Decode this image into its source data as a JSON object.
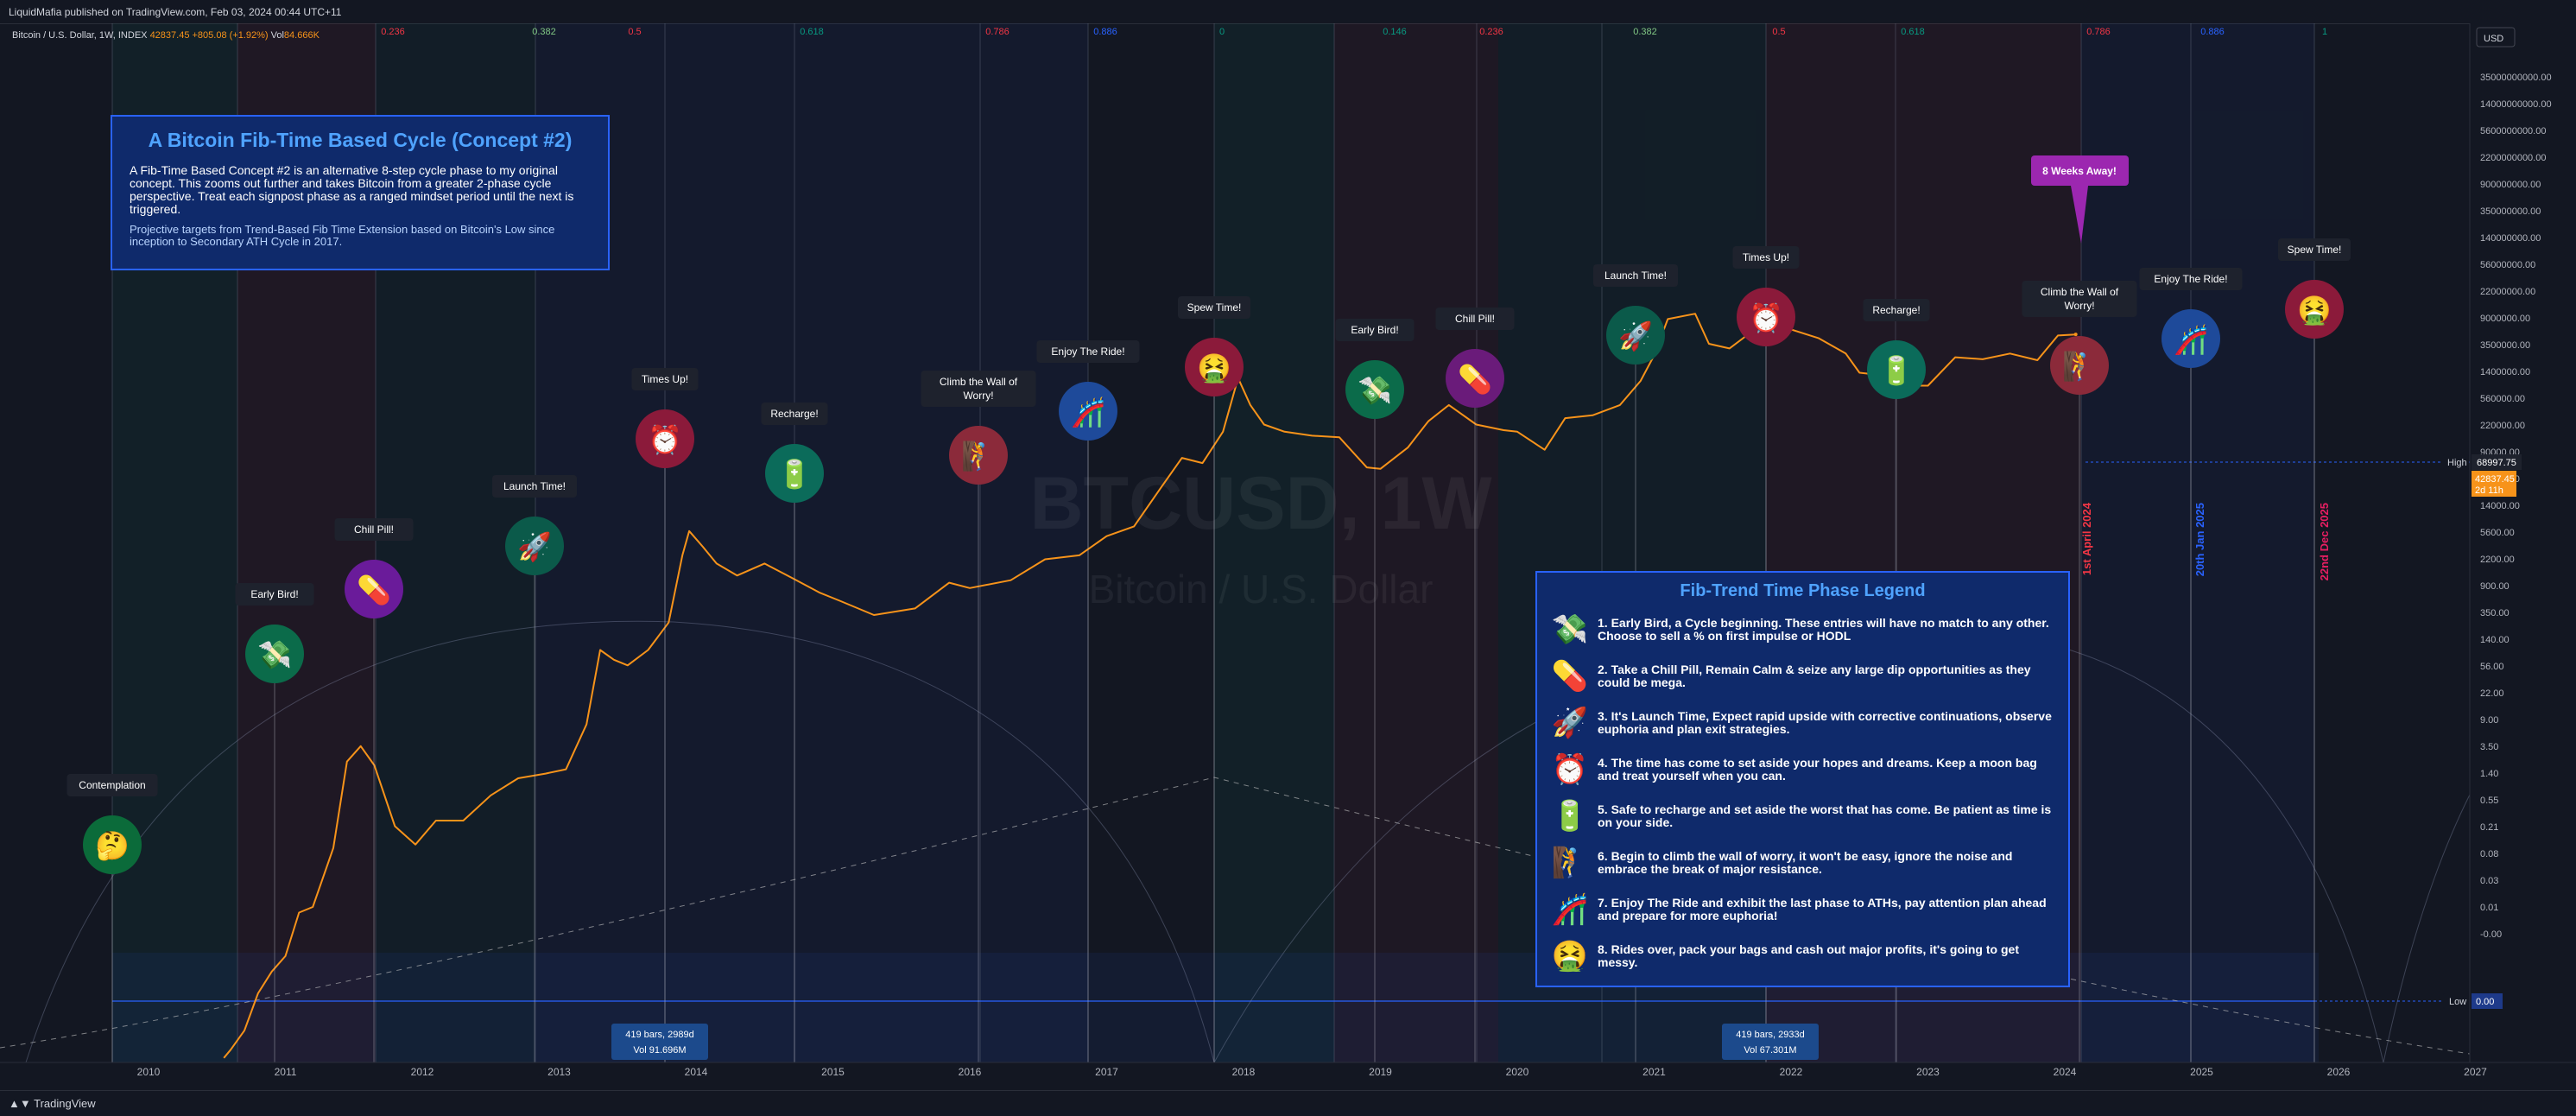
{
  "header": {
    "published_by": "LiquidMafia published on TradingView.com, Feb 03, 2024 00:44 UTC+11",
    "symbol_name": "Bitcoin / U.S. Dollar, 1W, INDEX",
    "ohlc_text": "42837.45 +805.08 (+1.92%)",
    "vol_label": "Vol",
    "vol_value": "84.666K"
  },
  "footer": {
    "brand": "TradingView"
  },
  "watermark": {
    "ticker": "BTCUSD, 1W",
    "name": "Bitcoin / U.S. Dollar"
  },
  "info_box": {
    "title": "A Bitcoin Fib-Time Based Cycle (Concept #2)",
    "body": "A Fib-Time Based Concept #2 is an alternative 8-step cycle phase to my original concept. This zooms out further and takes Bitcoin from a greater 2-phase cycle perspective. Treat each signpost phase as a ranged mindset period until the next is triggered.",
    "sub": "Projective targets from Trend-Based Fib Time Extension based on Bitcoin's Low since inception to Secondary ATH Cycle in 2017."
  },
  "legend_box": {
    "title": "Fib-Trend Time Phase Legend",
    "items": [
      {
        "icon": "money-with-wings-icon",
        "glyph": "💸",
        "text": "1. Early Bird, a Cycle beginning. These entries will have no match to any other. Choose to sell a % on first impulse or HODL"
      },
      {
        "icon": "pill-icon",
        "glyph": "💊",
        "text": "2. Take a Chill Pill, Remain Calm & seize any large dip opportunities as they could be mega."
      },
      {
        "icon": "rocket-icon",
        "glyph": "🚀",
        "text": "3. It's Launch Time, Expect rapid upside with corrective continuations, observe euphoria and plan exit strategies."
      },
      {
        "icon": "alarm-clock-icon",
        "glyph": "⏰",
        "text": "4. The time has come to set aside your hopes and dreams. Keep a moon bag and treat yourself when you can."
      },
      {
        "icon": "battery-icon",
        "glyph": "🔋",
        "text": "5. Safe to recharge and set aside the worst that has come. Be patient as time is on your side."
      },
      {
        "icon": "climber-icon",
        "glyph": "🧗",
        "text": "6. Begin to climb the wall of worry, it won't be easy, ignore the noise and embrace the break of major resistance."
      },
      {
        "icon": "roller-coaster-icon",
        "glyph": "🎢",
        "text": "7. Enjoy The Ride and exhibit the last phase to ATHs, pay attention plan ahead and prepare for more euphoria!"
      },
      {
        "icon": "vomiting-face-icon",
        "glyph": "🤮",
        "text": "8. Rides over, pack your bags and cash out major profits, it's going to get messy."
      }
    ]
  },
  "price_axis": {
    "currency": "USD",
    "labels": [
      "35000000000.00",
      "14000000000.00",
      "5600000000.00",
      "2200000000.00",
      "900000000.00",
      "350000000.00",
      "140000000.00",
      "56000000.00",
      "22000000.00",
      "9000000.00",
      "3500000.00",
      "1400000.00",
      "560000.00",
      "220000.00",
      "90000.00",
      "35000.00",
      "14000.00",
      "5600.00",
      "2200.00",
      "900.00",
      "350.00",
      "140.00",
      "56.00",
      "22.00",
      "9.00",
      "3.50",
      "1.40",
      "0.55",
      "0.21",
      "0.08",
      "0.03",
      "0.01",
      "-0.00"
    ],
    "high_label": "High",
    "high_value": "68997.75",
    "last_price": "42837.45",
    "last_countdown": "2d 11h",
    "low_label": "Low",
    "low_value": "0.00"
  },
  "fib_levels": [
    {
      "label": "0.236",
      "color": "#f23645"
    },
    {
      "label": "0.382",
      "color": "#81c784"
    },
    {
      "label": "0.5",
      "color": "#f23645"
    },
    {
      "label": "0.618",
      "color": "#089981"
    },
    {
      "label": "0.786",
      "color": "#f23645"
    },
    {
      "label": "0.886",
      "color": "#2962ff"
    },
    {
      "label": "0",
      "color": "#089981"
    },
    {
      "label": "0.146",
      "color": "#089981"
    },
    {
      "label": "0.236",
      "color": "#f23645"
    },
    {
      "label": "0.382",
      "color": "#81c784"
    },
    {
      "label": "0.5",
      "color": "#f23645"
    },
    {
      "label": "0.618",
      "color": "#089981"
    },
    {
      "label": "0.786",
      "color": "#f23645"
    },
    {
      "label": "0.886",
      "color": "#2962ff"
    },
    {
      "label": "1",
      "color": "#089981"
    }
  ],
  "bar_boxes": [
    {
      "line1": "419 bars, 2989d",
      "line2": "Vol 91.696M"
    },
    {
      "line1": "419 bars, 2933d",
      "line2": "Vol 67.301M"
    }
  ],
  "alert": {
    "text": "8 Weeks Away!"
  },
  "vertical_dates": [
    {
      "text": "1st April 2024",
      "color": "#f23645"
    },
    {
      "text": "20th Jan 2025",
      "color": "#2962ff"
    },
    {
      "text": "22nd Dec 2025",
      "color": "#e91e63"
    }
  ],
  "chart_data": {
    "type": "line",
    "title": "Bitcoin / U.S. Dollar, 1W, INDEX",
    "xlabel": "",
    "ylabel": "",
    "x_ticks": [
      "2010",
      "2011",
      "2012",
      "2013",
      "2014",
      "2015",
      "2016",
      "2017",
      "2018",
      "2019",
      "2020",
      "2021",
      "2022",
      "2023",
      "2024",
      "2025",
      "2026",
      "2027"
    ],
    "y_scale": "log",
    "series": [
      {
        "name": "",
        "color": "#f7931a",
        "x": [
          2010.55,
          2010.6,
          2010.7,
          2010.8,
          2010.9,
          2011.0,
          2011.1,
          2011.2,
          2011.35,
          2011.45,
          2011.55,
          2011.65,
          2011.8,
          2011.95,
          2012.1,
          2012.3,
          2012.5,
          2012.7,
          2012.9,
          2013.05,
          2013.2,
          2013.3,
          2013.4,
          2013.5,
          2013.65,
          2013.8,
          2013.9,
          2013.95,
          2014.05,
          2014.15,
          2014.3,
          2014.5,
          2014.7,
          2014.9,
          2015.05,
          2015.3,
          2015.6,
          2015.85,
          2016.0,
          2016.3,
          2016.55,
          2016.8,
          2017.0,
          2017.2,
          2017.4,
          2017.55,
          2017.7,
          2017.85,
          2017.96,
          2018.05,
          2018.15,
          2018.3,
          2018.5,
          2018.7,
          2018.9,
          2019.0,
          2019.2,
          2019.35,
          2019.5,
          2019.7,
          2019.9,
          2020.0,
          2020.2,
          2020.35,
          2020.55,
          2020.75,
          2020.9,
          2021.0,
          2021.1,
          2021.3,
          2021.4,
          2021.55,
          2021.7,
          2021.87,
          2022.0,
          2022.2,
          2022.4,
          2022.5,
          2022.75,
          2022.9,
          2023.0,
          2023.2,
          2023.4,
          2023.6,
          2023.8,
          2023.95,
          2024.08
        ],
        "y": [
          0.06,
          0.07,
          0.1,
          0.2,
          0.3,
          0.4,
          0.9,
          1.0,
          3.0,
          15,
          20,
          14,
          4.5,
          3.2,
          5,
          5,
          8,
          11,
          12,
          13,
          30,
          120,
          100,
          90,
          120,
          200,
          700,
          1100,
          820,
          600,
          480,
          600,
          460,
          350,
          300,
          230,
          260,
          420,
          380,
          440,
          650,
          700,
          1000,
          1200,
          2500,
          4300,
          3900,
          7000,
          19000,
          11500,
          8000,
          7000,
          6500,
          6300,
          3600,
          3500,
          5200,
          8500,
          11500,
          8000,
          7200,
          7000,
          5000,
          9000,
          9500,
          11500,
          18000,
          29000,
          57000,
          63000,
          36000,
          33000,
          44000,
          65000,
          47000,
          40000,
          30000,
          21000,
          19500,
          16500,
          16500,
          28000,
          27000,
          30000,
          26500,
          42000,
          42837
        ]
      }
    ]
  },
  "signposts": [
    {
      "label": "Contemplation",
      "icon": "thinking-face-icon",
      "glyph": "🤔",
      "color": "#0b6b3a"
    },
    {
      "label": "Early Bird!",
      "icon": "money-with-wings-icon",
      "glyph": "💸",
      "color": "#0b6b4a"
    },
    {
      "label": "Chill Pill!",
      "icon": "pill-icon",
      "glyph": "💊",
      "color": "#6a1b9a"
    },
    {
      "label": "Launch Time!",
      "icon": "rocket-icon",
      "glyph": "🚀",
      "color": "#0b5a4a"
    },
    {
      "label": "Times Up!",
      "icon": "alarm-clock-icon",
      "glyph": "⏰",
      "color": "#8b1a3a"
    },
    {
      "label": "Recharge!",
      "icon": "battery-icon",
      "glyph": "🔋",
      "color": "#0b6b5a"
    },
    {
      "label": "Climb the Wall of Worry!",
      "icon": "climber-icon",
      "glyph": "🧗",
      "color": "#8b2a3a"
    },
    {
      "label": "Enjoy The Ride!",
      "icon": "roller-coaster-icon",
      "glyph": "🎢",
      "color": "#1e4a9a"
    },
    {
      "label": "Spew Time!",
      "icon": "vomiting-face-icon",
      "glyph": "🤮",
      "color": "#8b1a3a"
    },
    {
      "label": "Early Bird!",
      "icon": "money-with-wings-icon",
      "glyph": "💸",
      "color": "#0b6b4a"
    },
    {
      "label": "Chill Pill!",
      "icon": "pill-icon",
      "glyph": "💊",
      "color": "#6a1b7a"
    },
    {
      "label": "Launch Time!",
      "icon": "rocket-icon",
      "glyph": "🚀",
      "color": "#0b5a4a"
    },
    {
      "label": "Times Up!",
      "icon": "alarm-clock-icon",
      "glyph": "⏰",
      "color": "#8b1a3a"
    },
    {
      "label": "Recharge!",
      "icon": "battery-icon",
      "glyph": "🔋",
      "color": "#0b6b5a"
    },
    {
      "label": "Climb the Wall of Worry!",
      "icon": "climber-icon",
      "glyph": "🧗",
      "color": "#8b2a3a"
    },
    {
      "label": "Enjoy The Ride!",
      "icon": "roller-coaster-icon",
      "glyph": "🎢",
      "color": "#1e4a9a"
    },
    {
      "label": "Spew Time!",
      "icon": "vomiting-face-icon",
      "glyph": "🤮",
      "color": "#8b1a3a"
    }
  ]
}
